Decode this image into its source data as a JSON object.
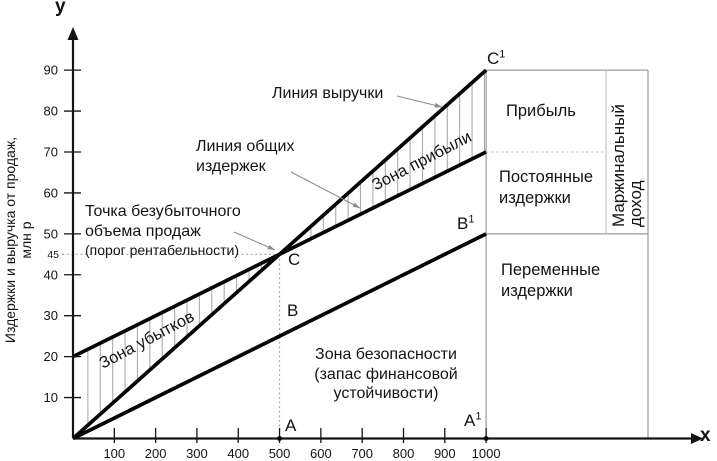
{
  "colors": {
    "line": "#050505",
    "axis": "#141414",
    "hatch": "#ababab",
    "box_border": "#999999",
    "divider": "#c0c0c0",
    "dotted": "#a8a8a8",
    "leader": "#8c8c8c",
    "text": "#141414",
    "background": "#ffffff"
  },
  "axes": {
    "x_letter": "x",
    "y_letter": "y",
    "y_axis_title": "Издержки и выручка от продаж,",
    "y_axis_title_unit": "млн р"
  },
  "chart_data": {
    "type": "line",
    "title": "",
    "xlabel": "x",
    "ylabel": "Издержки и выручка от продаж, млн р",
    "xlim": [
      0,
      1050
    ],
    "ylim": [
      0,
      100
    ],
    "grid": false,
    "x_ticks": [
      100,
      200,
      300,
      400,
      500,
      600,
      700,
      800,
      900,
      1000
    ],
    "y_ticks": [
      10,
      20,
      30,
      40,
      50,
      60,
      70,
      80,
      90
    ],
    "y_break_even_tick": 45,
    "series": [
      {
        "name": "revenue",
        "label": "Линия выручки",
        "points": [
          [
            0,
            0
          ],
          [
            1000,
            90
          ]
        ]
      },
      {
        "name": "total-costs",
        "label": "Линия общих издержек",
        "points": [
          [
            0,
            20
          ],
          [
            1000,
            70
          ]
        ]
      },
      {
        "name": "variable-costs",
        "label": "",
        "points": [
          [
            0,
            0
          ],
          [
            1000,
            50
          ]
        ]
      }
    ],
    "break_even_point": {
      "x": 500,
      "y": 45
    },
    "right_panel_levels": {
      "top": 90,
      "mid": 70,
      "bottom": 50
    },
    "marked_x": [
      500,
      1000
    ]
  },
  "annotations": {
    "revenue_line": "Линия выручки",
    "total_cost_line": "Линия общих издержек",
    "break_even_main": "Точка безубыточного объема продаж",
    "break_even_sub": "(порог рентабельности)"
  },
  "zones": {
    "loss": "Зона убытков",
    "profit": "Зона прибыли",
    "safety": "Зона безопасности (запас финансовой устойчивости)"
  },
  "right_panel": {
    "profit": "Прибыль",
    "fixed_costs": "Постоянные издержки",
    "variable_costs": "Переменные издержки",
    "marginal_income": "Маржинальный доход"
  },
  "points": {
    "c": {
      "label": "C"
    },
    "c1": {
      "label": "C",
      "sup": "1"
    },
    "b": {
      "label": "B"
    },
    "b1": {
      "label": "B",
      "sup": "1"
    },
    "a": {
      "label": "A"
    },
    "a1": {
      "label": "A",
      "sup": "1"
    }
  }
}
